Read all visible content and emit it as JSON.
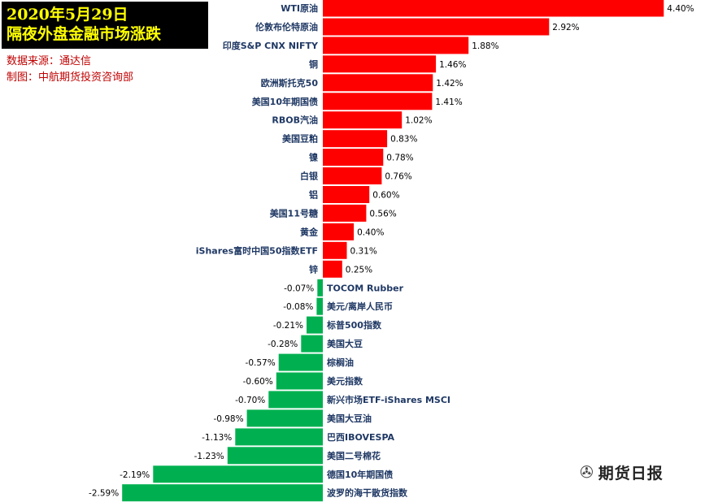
{
  "header": {
    "date": "2020年5月29日",
    "title": "隔夜外盘金融市场涨跌",
    "source": "数据来源：通达信",
    "credit": "制图：中航期货投资咨询部"
  },
  "watermark": {
    "icon": "wechat-icon",
    "text": "期货日报"
  },
  "colors": {
    "positive": "#ff0000",
    "negative": "#00b050",
    "title_bg": "#000000",
    "title_fg": "#ffff00",
    "meta": "#c00000"
  },
  "chart_data": {
    "type": "bar",
    "orientation": "horizontal",
    "categories": [
      "WTI原油",
      "伦敦布伦特原油",
      "印度S&P CNX NIFTY",
      "铜",
      "欧洲斯托克50",
      "美国10年期国债",
      "RBOB汽油",
      "美国豆粕",
      "镍",
      "白银",
      "铝",
      "美国11号糖",
      "黄金",
      "iShares富时中国50指数ETF",
      "锌",
      "TOCOM Rubber",
      "美元/离岸人民币",
      "标普500指数",
      "美国大豆",
      "棕榈油",
      "美元指数",
      "新兴市场ETF-iShares MSCI",
      "美国大豆油",
      "巴西IBOVESPA",
      "美国二号棉花",
      "德国10年期国债",
      "波罗的海干散货指数"
    ],
    "values": [
      4.4,
      2.92,
      1.88,
      1.46,
      1.42,
      1.41,
      1.02,
      0.83,
      0.78,
      0.76,
      0.6,
      0.56,
      0.4,
      0.31,
      0.25,
      -0.07,
      -0.08,
      -0.21,
      -0.28,
      -0.57,
      -0.6,
      -0.7,
      -0.98,
      -1.13,
      -1.23,
      -2.19,
      -2.59
    ],
    "labels": [
      "4.40%",
      "2.92%",
      "1.88%",
      "1.46%",
      "1.42%",
      "1.41%",
      "1.02%",
      "0.83%",
      "0.78%",
      "0.76%",
      "0.60%",
      "0.56%",
      "0.40%",
      "0.31%",
      "0.25%",
      "-0.07%",
      "-0.08%",
      "-0.21%",
      "-0.28%",
      "-0.57%",
      "-0.60%",
      "-0.70%",
      "-0.98%",
      "-1.13%",
      "-1.23%",
      "-2.19%",
      "-2.59%"
    ],
    "xlim": [
      -2.59,
      4.4
    ],
    "grid": false,
    "legend": "none"
  }
}
